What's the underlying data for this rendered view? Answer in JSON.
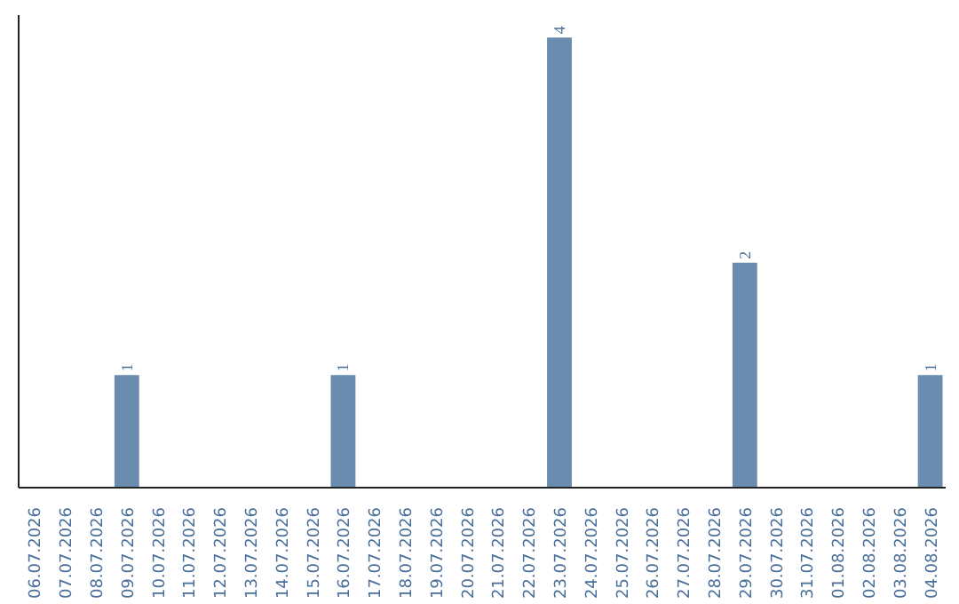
{
  "chart_data": {
    "type": "bar",
    "categories": [
      "06.07.2026",
      "07.07.2026",
      "08.07.2026",
      "09.07.2026",
      "10.07.2026",
      "11.07.2026",
      "12.07.2026",
      "13.07.2026",
      "14.07.2026",
      "15.07.2026",
      "16.07.2026",
      "17.07.2026",
      "18.07.2026",
      "19.07.2026",
      "20.07.2026",
      "21.07.2026",
      "22.07.2026",
      "23.07.2026",
      "24.07.2026",
      "25.07.2026",
      "26.07.2026",
      "27.07.2026",
      "28.07.2026",
      "29.07.2026",
      "30.07.2026",
      "31.07.2026",
      "01.08.2026",
      "02.08.2026",
      "03.08.2026",
      "04.08.2026"
    ],
    "values": [
      0,
      0,
      0,
      1,
      0,
      0,
      0,
      0,
      0,
      0,
      1,
      0,
      0,
      0,
      0,
      0,
      0,
      4,
      0,
      0,
      0,
      0,
      0,
      2,
      0,
      0,
      0,
      0,
      0,
      1
    ],
    "color": "#6a8caf",
    "value_labels": [
      null,
      null,
      null,
      "1",
      null,
      null,
      null,
      null,
      null,
      null,
      "1",
      null,
      null,
      null,
      null,
      null,
      null,
      "4",
      null,
      null,
      null,
      null,
      null,
      "2",
      null,
      null,
      null,
      null,
      null,
      "1"
    ],
    "tick_labels": "x"
  }
}
